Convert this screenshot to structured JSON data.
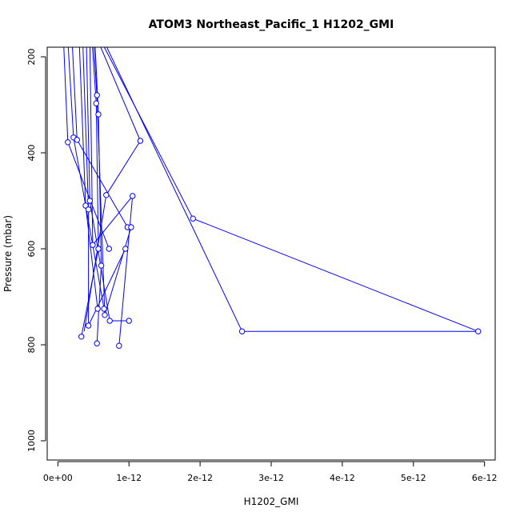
{
  "chart_data": {
    "type": "line",
    "title": "ATOM3 Northeast_Pacific_1 H1202_GMI",
    "xlabel": "H1202_GMI",
    "ylabel": "Pressure (mbar)",
    "xlim": [
      -1.5e-13,
      6.15e-12
    ],
    "ylim": [
      1040,
      180
    ],
    "y_reversed": true,
    "x_ticks": [
      {
        "value": 0,
        "label": "0e+00"
      },
      {
        "value": 1e-12,
        "label": "1e-12"
      },
      {
        "value": 2e-12,
        "label": "2e-12"
      },
      {
        "value": 3e-12,
        "label": "3e-12"
      },
      {
        "value": 4e-12,
        "label": "4e-12"
      },
      {
        "value": 5e-12,
        "label": "5e-12"
      },
      {
        "value": 6e-12,
        "label": "6e-12"
      }
    ],
    "y_ticks": [
      {
        "value": 200,
        "label": "200"
      },
      {
        "value": 400,
        "label": "400"
      },
      {
        "value": 600,
        "label": "600"
      },
      {
        "value": 800,
        "label": "800"
      },
      {
        "value": 1000,
        "label": "1000"
      }
    ],
    "color": "#0000ff",
    "profiles": [
      [
        [
          8e-14,
          165
        ],
        [
          1.4e-13,
          378
        ]
      ],
      [
        [
          1.4e-13,
          378
        ],
        [
          7.2e-13,
          600
        ]
      ],
      [
        [
          1.4e-13,
          165
        ],
        [
          2.2e-13,
          368
        ]
      ],
      [
        [
          2.2e-13,
          368
        ],
        [
          6.5e-13,
          725
        ]
      ],
      [
        [
          2e-13,
          165
        ],
        [
          2.7e-13,
          373
        ]
      ],
      [
        [
          2.7e-13,
          373
        ],
        [
          9.8e-13,
          555
        ]
      ],
      [
        [
          3e-13,
          165
        ],
        [
          3.9e-13,
          510
        ]
      ],
      [
        [
          3.9e-13,
          510
        ],
        [
          5.6e-13,
          725
        ]
      ],
      [
        [
          3.5e-13,
          165
        ],
        [
          4.3e-13,
          518
        ]
      ],
      [
        [
          4.3e-13,
          518
        ],
        [
          4.3e-13,
          760
        ]
      ],
      [
        [
          4.3e-13,
          760
        ],
        [
          9.5e-13,
          600
        ]
      ],
      [
        [
          4e-13,
          165
        ],
        [
          4.5e-13,
          500
        ]
      ],
      [
        [
          4.5e-13,
          500
        ],
        [
          7.3e-13,
          750
        ]
      ],
      [
        [
          7.3e-13,
          750
        ],
        [
          1e-12,
          750
        ]
      ],
      [
        [
          4.5e-13,
          165
        ],
        [
          4.9e-13,
          592
        ]
      ],
      [
        [
          4.9e-13,
          592
        ],
        [
          1.05e-12,
          490
        ]
      ],
      [
        [
          1.05e-12,
          490
        ],
        [
          8.6e-13,
          802
        ]
      ],
      [
        [
          4.8e-13,
          165
        ],
        [
          5.4e-13,
          297
        ]
      ],
      [
        [
          5.4e-13,
          297
        ],
        [
          5.7e-13,
          600
        ]
      ],
      [
        [
          5.7e-13,
          600
        ],
        [
          3.3e-13,
          783
        ]
      ],
      [
        [
          5e-13,
          165
        ],
        [
          5.5e-13,
          280
        ]
      ],
      [
        [
          5.5e-13,
          280
        ],
        [
          6.6e-13,
          738
        ]
      ],
      [
        [
          6.6e-13,
          738
        ],
        [
          1.03e-12,
          555
        ]
      ],
      [
        [
          5.2e-13,
          165
        ],
        [
          5.7e-13,
          320
        ]
      ],
      [
        [
          5.7e-13,
          320
        ],
        [
          6.1e-13,
          635
        ]
      ],
      [
        [
          6.1e-13,
          635
        ],
        [
          5.5e-13,
          797
        ]
      ],
      [
        [
          5.6e-13,
          165
        ],
        [
          1.16e-12,
          375
        ]
      ],
      [
        [
          1.16e-12,
          375
        ],
        [
          6.8e-13,
          488
        ]
      ],
      [
        [
          6.8e-13,
          488
        ],
        [
          3.7e-13,
          772
        ]
      ],
      [
        [
          6.4e-13,
          165
        ],
        [
          2.59e-12,
          772
        ]
      ],
      [
        [
          2.59e-12,
          772
        ],
        [
          5.91e-12,
          772
        ]
      ],
      [
        [
          5.91e-12,
          772
        ],
        [
          1.9e-12,
          537
        ]
      ],
      [
        [
          6e-13,
          165
        ],
        [
          1.9e-12,
          537
        ]
      ]
    ],
    "points": [
      [
        1.4e-13,
        378
      ],
      [
        2.2e-13,
        368
      ],
      [
        2.7e-13,
        373
      ],
      [
        3.9e-13,
        510
      ],
      [
        4.3e-13,
        518
      ],
      [
        4.5e-13,
        500
      ],
      [
        4.9e-13,
        592
      ],
      [
        5.4e-13,
        297
      ],
      [
        5.5e-13,
        280
      ],
      [
        5.7e-13,
        320
      ],
      [
        5.7e-13,
        600
      ],
      [
        6.1e-13,
        635
      ],
      [
        6.8e-13,
        488
      ],
      [
        7.2e-13,
        600
      ],
      [
        9.5e-13,
        600
      ],
      [
        9.8e-13,
        555
      ],
      [
        1.03e-12,
        555
      ],
      [
        1.05e-12,
        490
      ],
      [
        1.16e-12,
        375
      ],
      [
        1.9e-12,
        537
      ],
      [
        5.6e-13,
        725
      ],
      [
        6.5e-13,
        725
      ],
      [
        6.6e-13,
        738
      ],
      [
        7.3e-13,
        750
      ],
      [
        1e-12,
        750
      ],
      [
        4.3e-13,
        760
      ],
      [
        3.3e-13,
        783
      ],
      [
        5.5e-13,
        797
      ],
      [
        8.6e-13,
        802
      ],
      [
        2.59e-12,
        772
      ],
      [
        5.91e-12,
        772
      ]
    ]
  }
}
